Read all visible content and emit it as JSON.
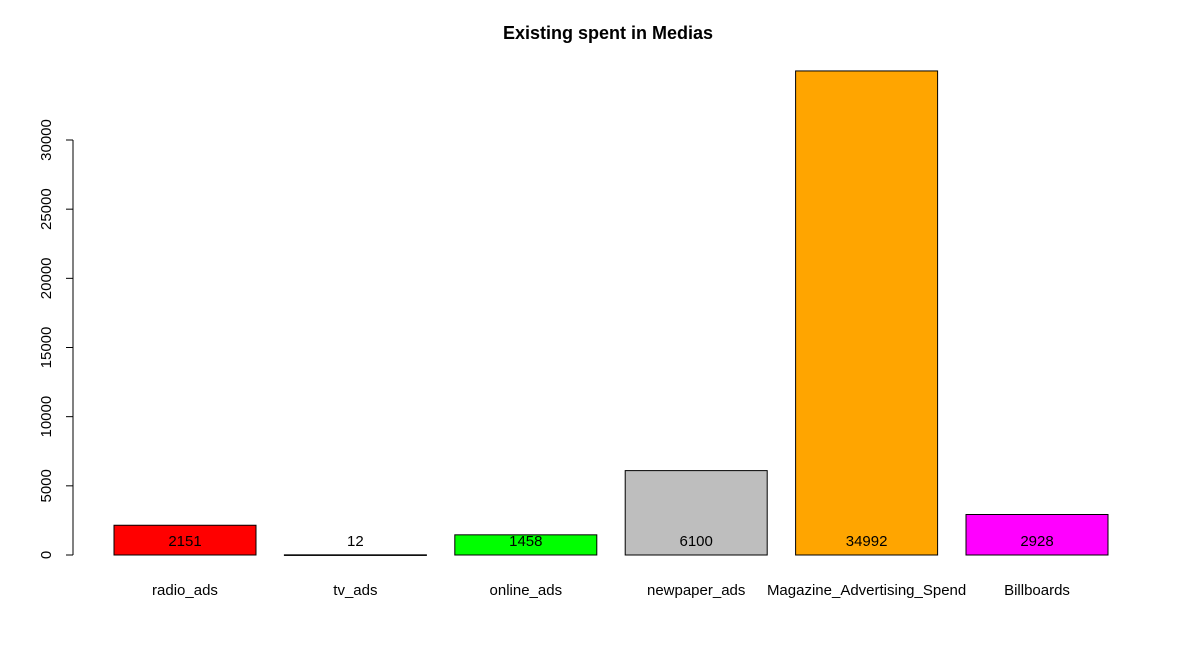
{
  "chart_data": {
    "type": "bar",
    "title": "Existing spent in Medias",
    "xlabel": "",
    "ylabel": "",
    "categories": [
      "radio_ads",
      "tv_ads",
      "online_ads",
      "newpaper_ads",
      "Magazine_Advertising_Spend",
      "Billboards"
    ],
    "values": [
      2151,
      12,
      1458,
      6100,
      34992,
      2928
    ],
    "data_labels": [
      "2151",
      "12",
      "1458",
      "6100",
      "34992",
      "2928"
    ],
    "colors": [
      "#ff0000",
      "#ffffff",
      "#00ff00",
      "#bebebe",
      "#ffa500",
      "#ff00ff"
    ],
    "ylim": [
      0,
      35000
    ],
    "yticks": [
      0,
      5000,
      10000,
      15000,
      20000,
      25000,
      30000
    ],
    "ytick_labels": [
      "0",
      "5000",
      "10000",
      "15000",
      "20000",
      "25000",
      "30000"
    ],
    "grid": false,
    "legend": "none"
  }
}
